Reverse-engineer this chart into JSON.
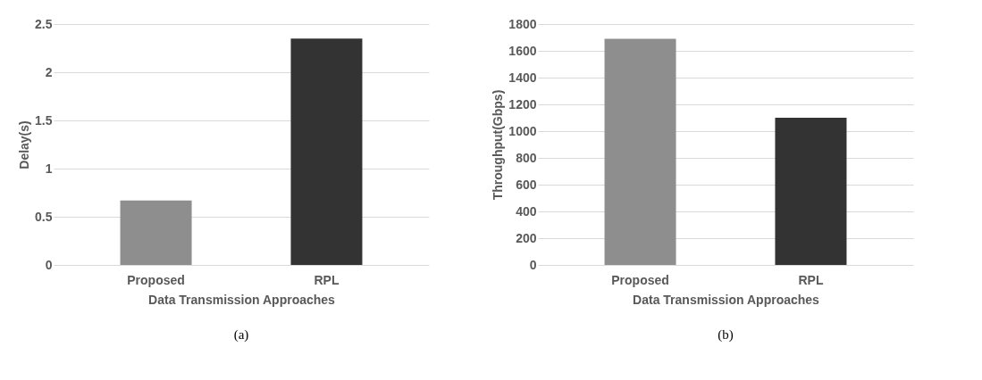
{
  "chart_data": [
    {
      "type": "bar",
      "categories": [
        "Proposed",
        "RPL"
      ],
      "values": [
        0.67,
        2.35
      ],
      "colors": [
        "#8e8e8e",
        "#333333"
      ],
      "xlabel": "Data Transmission Approaches",
      "ylabel": "Delay(s)",
      "ylim": [
        0,
        2.5
      ],
      "yticks": [
        0,
        0.5,
        1,
        1.5,
        2,
        2.5
      ],
      "grid": "y",
      "legend": false,
      "annotations": [
        "(a)"
      ]
    },
    {
      "type": "bar",
      "categories": [
        "Proposed",
        "RPL"
      ],
      "values": [
        1690,
        1100
      ],
      "colors": [
        "#8e8e8e",
        "#333333"
      ],
      "xlabel": "Data Transmission Approaches",
      "ylabel": "Throughput(Gbps)",
      "ylim": [
        0,
        1800
      ],
      "yticks": [
        0,
        200,
        400,
        600,
        800,
        1000,
        1200,
        1400,
        1600,
        1800
      ],
      "grid": "y",
      "legend": false,
      "annotations": [
        "(b)"
      ]
    }
  ]
}
